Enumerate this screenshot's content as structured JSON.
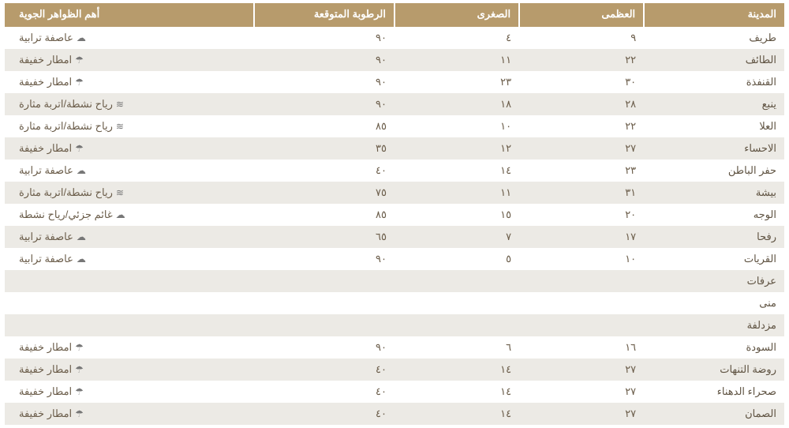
{
  "table": {
    "header_bg": "#b79b6c",
    "header_fg": "#ffffff",
    "row_odd_bg": "#ffffff",
    "row_even_bg": "#eceae5",
    "text_color": "#6a5c49",
    "columns": {
      "city": "المدينة",
      "max": "العظمى",
      "min": "الصغرى",
      "humidity": "الرطوبة المتوقعة",
      "phenomena": "أهم الظواهر الجوية"
    },
    "icon_map": {
      "dust": "☁",
      "rain": "☂",
      "wind": "≋",
      "cloud": "☁"
    },
    "rows": [
      {
        "city": "طريف",
        "max": "٩",
        "min": "٤",
        "humidity": "٩٠",
        "phen": "عاصفة ترابية",
        "icon": "dust"
      },
      {
        "city": "الطائف",
        "max": "٢٢",
        "min": "١١",
        "humidity": "٩٠",
        "phen": "امطار خفيفة",
        "icon": "rain"
      },
      {
        "city": "القنفذة",
        "max": "٣٠",
        "min": "٢٣",
        "humidity": "٩٠",
        "phen": "امطار خفيفة",
        "icon": "rain"
      },
      {
        "city": "ينبع",
        "max": "٢٨",
        "min": "١٨",
        "humidity": "٩٠",
        "phen": "رياح نشطة/اتربة مثارة",
        "icon": "wind"
      },
      {
        "city": "العلا",
        "max": "٢٢",
        "min": "١٠",
        "humidity": "٨٥",
        "phen": "رياح نشطة/اتربة مثارة",
        "icon": "wind"
      },
      {
        "city": "الاحساء",
        "max": "٢٧",
        "min": "١٢",
        "humidity": "٣٥",
        "phen": "امطار خفيفة",
        "icon": "rain"
      },
      {
        "city": "حفر الباطن",
        "max": "٢٣",
        "min": "١٤",
        "humidity": "٤٠",
        "phen": "عاصفة ترابية",
        "icon": "dust"
      },
      {
        "city": "بيشة",
        "max": "٣١",
        "min": "١١",
        "humidity": "٧٥",
        "phen": "رياح نشطة/اتربة مثارة",
        "icon": "wind"
      },
      {
        "city": "الوجه",
        "max": "٢٠",
        "min": "١٥",
        "humidity": "٨٥",
        "phen": "غائم جزئي/رياح نشطة",
        "icon": "cloud"
      },
      {
        "city": "رفحا",
        "max": "١٧",
        "min": "٧",
        "humidity": "٦٥",
        "phen": "عاصفة ترابية",
        "icon": "dust"
      },
      {
        "city": "القريات",
        "max": "١٠",
        "min": "٥",
        "humidity": "٩٠",
        "phen": "عاصفة ترابية",
        "icon": "dust"
      },
      {
        "city": "عرفات",
        "max": "",
        "min": "",
        "humidity": "",
        "phen": "",
        "icon": ""
      },
      {
        "city": "منى",
        "max": "",
        "min": "",
        "humidity": "",
        "phen": "",
        "icon": ""
      },
      {
        "city": "مزدلفة",
        "max": "",
        "min": "",
        "humidity": "",
        "phen": "",
        "icon": ""
      },
      {
        "city": "السودة",
        "max": "١٦",
        "min": "٦",
        "humidity": "٩٠",
        "phen": "امطار خفيفة",
        "icon": "rain"
      },
      {
        "city": "روضة التنهات",
        "max": "٢٧",
        "min": "١٤",
        "humidity": "٤٠",
        "phen": "امطار خفيفة",
        "icon": "rain"
      },
      {
        "city": "صحراء الدهناء",
        "max": "٢٧",
        "min": "١٤",
        "humidity": "٤٠",
        "phen": "امطار خفيفة",
        "icon": "rain"
      },
      {
        "city": "الصمان",
        "max": "٢٧",
        "min": "١٤",
        "humidity": "٤٠",
        "phen": "امطار خفيفة",
        "icon": "rain"
      }
    ]
  }
}
